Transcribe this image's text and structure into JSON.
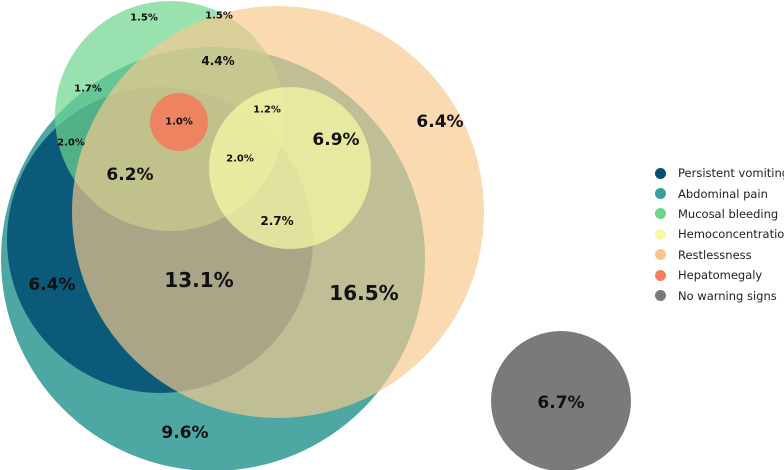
{
  "sets": [
    {
      "key": "persistent_vomiting",
      "name": "Persistent vomiting",
      "color": "#034e73"
    },
    {
      "key": "abdominal_pain",
      "name": "Abdominal pain",
      "color": "#3a9e9a"
    },
    {
      "key": "mucosal_bleeding",
      "name": "Mucosal bleeding",
      "color": "#6fd48f"
    },
    {
      "key": "hemoconcentration",
      "name": "Hemoconcentration",
      "color": "#f7f9a6"
    },
    {
      "key": "restlessness",
      "name": "Restlessness",
      "color": "#f6c88c"
    },
    {
      "key": "hepatomegaly",
      "name": "Hepatomegaly",
      "color": "#ef7f5e"
    },
    {
      "key": "no_warning_signs",
      "name": "No warning signs",
      "color": "#7a7a7a"
    }
  ],
  "regions": [
    {
      "value": "1.5%"
    },
    {
      "value": "1.5%"
    },
    {
      "value": "4.4%"
    },
    {
      "value": "1.7%"
    },
    {
      "value": "1.0%"
    },
    {
      "value": "1.2%"
    },
    {
      "value": "6.9%"
    },
    {
      "value": "6.4%"
    },
    {
      "value": "2.0%"
    },
    {
      "value": "6.2%"
    },
    {
      "value": "2.0%"
    },
    {
      "value": "2.7%"
    },
    {
      "value": "6.4%"
    },
    {
      "value": "13.1%"
    },
    {
      "value": "16.5%"
    },
    {
      "value": "6.7%"
    },
    {
      "value": "9.6%"
    }
  ]
}
